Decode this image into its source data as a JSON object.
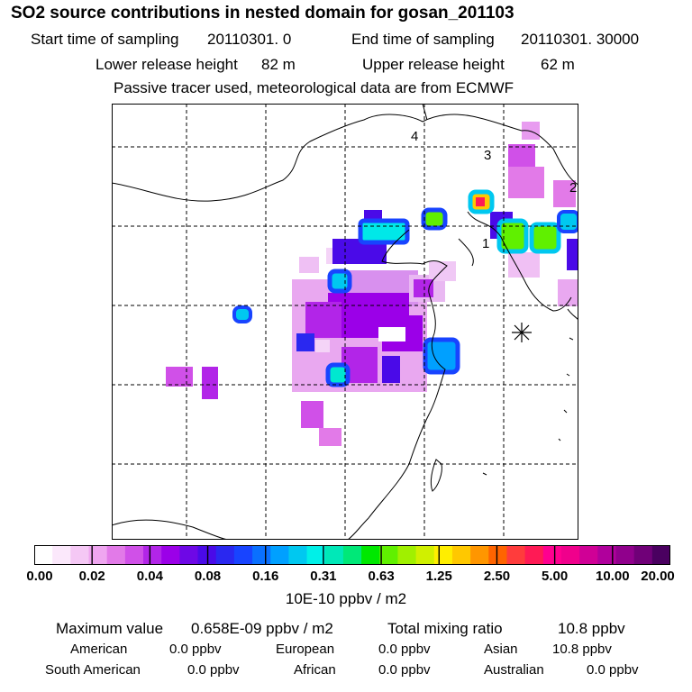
{
  "title": "SO2 source contributions in nested domain for gosan_201103",
  "header": {
    "start_label": "Start time of sampling",
    "start_value": "20110301.     0",
    "end_label": "End time of sampling",
    "end_value": "20110301. 30000",
    "lower_label": "Lower release height",
    "lower_value": "82 m",
    "upper_label": "Upper release height",
    "upper_value": "62 m",
    "note": "Passive tracer used, meteorological data are from ECMWF"
  },
  "map": {
    "region_labels": [
      "1",
      "2",
      "3",
      "4"
    ],
    "receptor_symbol": "receptor-marker"
  },
  "colorbar": {
    "ticks": [
      "0.00",
      "0.02",
      "0.04",
      "0.08",
      "0.16",
      "0.31",
      "0.63",
      "1.25",
      "2.50",
      "5.00",
      "10.00",
      "20.00"
    ],
    "colors": [
      "#ffffff",
      "#fbe8fb",
      "#f5c8f5",
      "#efa6f0",
      "#e27ae8",
      "#d050e8",
      "#b225e8",
      "#9b00e8",
      "#6e08e6",
      "#4a0ae8",
      "#2a28f0",
      "#1844ff",
      "#0a70ff",
      "#00a0ff",
      "#00c8f0",
      "#00f0e8",
      "#00e8b8",
      "#00e878",
      "#00e800",
      "#60f000",
      "#a0f000",
      "#d0f000",
      "#ffee00",
      "#ffc800",
      "#ff9600",
      "#ff6400",
      "#ff3c3c",
      "#ff1a55",
      "#ff0090",
      "#f0008c",
      "#d00096",
      "#b0009c",
      "#90008c",
      "#700078",
      "#4a0060"
    ],
    "units": "10E-10 ppbv / m2"
  },
  "stats": {
    "max_label": "Maximum value",
    "max_value": "0.658E-09 ppbv / m2",
    "total_label": "Total mixing ratio",
    "total_value": "10.8 ppbv",
    "regions": [
      {
        "name": "American",
        "value": "0.0 ppbv"
      },
      {
        "name": "European",
        "value": "0.0 ppbv"
      },
      {
        "name": "Asian",
        "value": "10.8 ppbv"
      },
      {
        "name": "South American",
        "value": "0.0 ppbv"
      },
      {
        "name": "African",
        "value": "0.0 ppbv"
      },
      {
        "name": "Australian",
        "value": "0.0 ppbv"
      }
    ]
  },
  "colors": {
    "frame": "#000000",
    "background": "#ffffff"
  }
}
